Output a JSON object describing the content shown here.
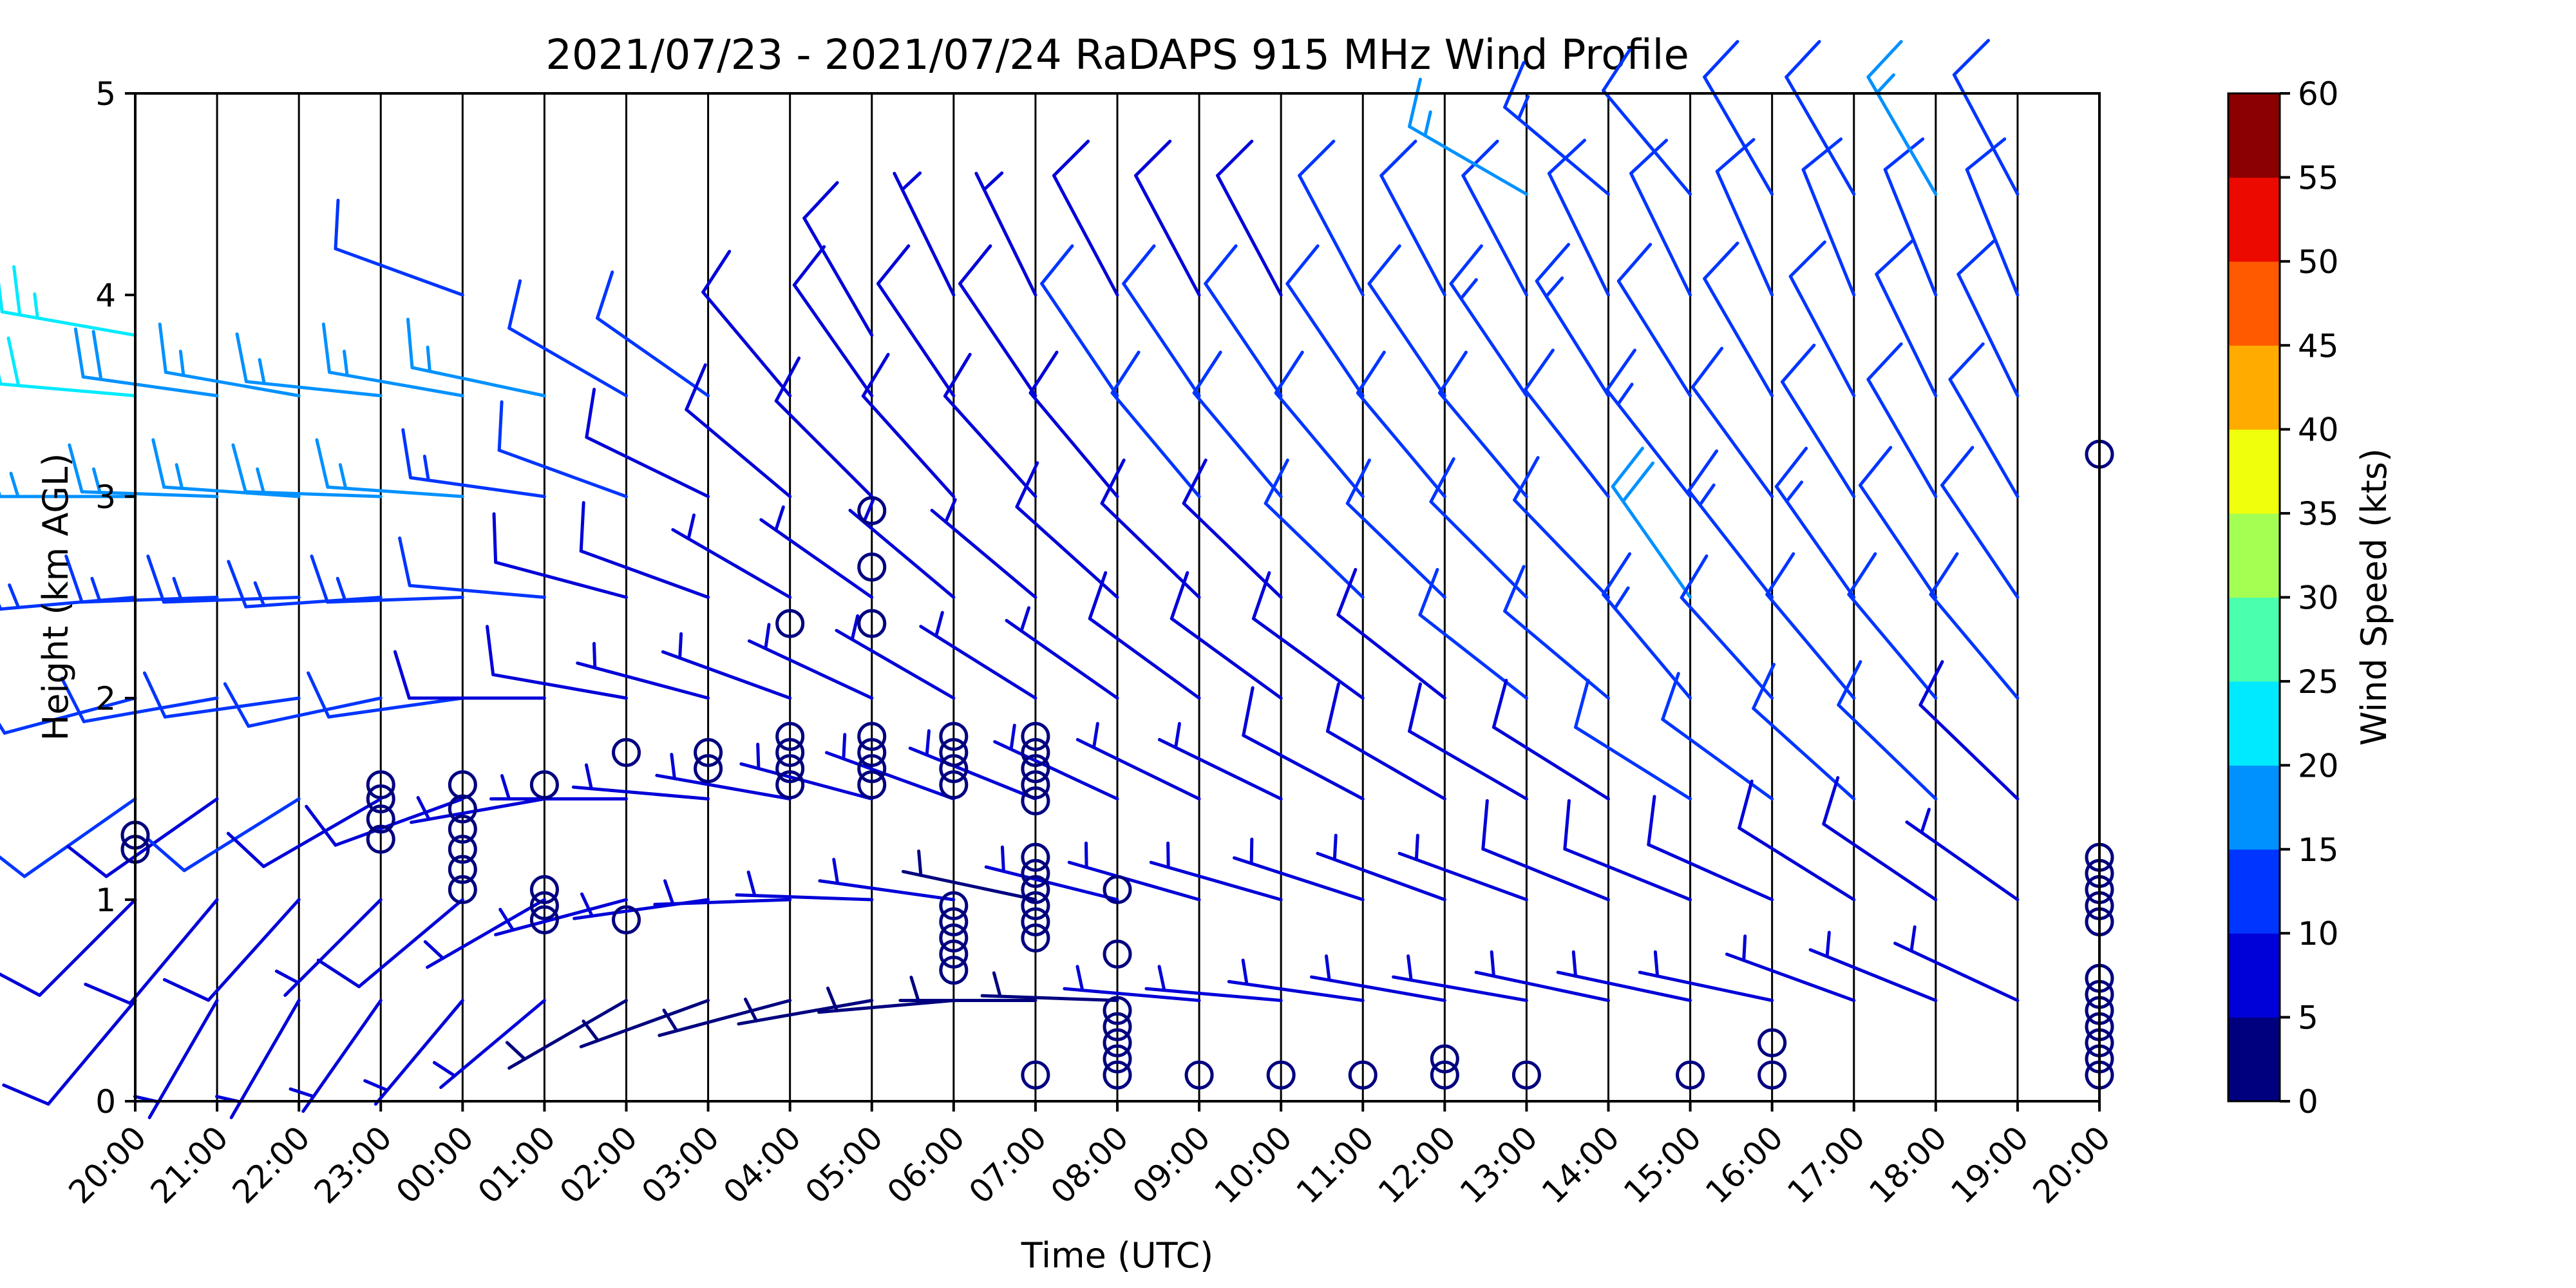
{
  "chart_data": {
    "type": "wind_barb_profile",
    "title": "2021/07/23 - 2021/07/24 RaDAPS 915 MHz Wind Profile",
    "xlabel": "Time (UTC)",
    "ylabel": "Height (km AGL)",
    "ylim": [
      0,
      5
    ],
    "yticks": [
      "0",
      "1",
      "2",
      "3",
      "4",
      "5"
    ],
    "x_ticks": [
      "20:00",
      "21:00",
      "22:00",
      "23:00",
      "00:00",
      "01:00",
      "02:00",
      "03:00",
      "04:00",
      "05:00",
      "06:00",
      "07:00",
      "08:00",
      "09:00",
      "10:00",
      "11:00",
      "12:00",
      "13:00",
      "14:00",
      "15:00",
      "16:00",
      "17:00",
      "18:00",
      "19:00",
      "20:00"
    ],
    "colorbar": {
      "label": "Wind Speed (kts)",
      "ticks": [
        "0",
        "5",
        "10",
        "15",
        "20",
        "25",
        "30",
        "35",
        "40",
        "45",
        "50",
        "55",
        "60"
      ],
      "colors": [
        "#00007f",
        "#0000d8",
        "#0035ff",
        "#0091ff",
        "#00eaff",
        "#4affad",
        "#a4ff53",
        "#f0ff0b",
        "#ffab00",
        "#ff5a00",
        "#ec0a00",
        "#8b0000"
      ]
    },
    "profiles": [
      {
        "time": "20:00",
        "heights": [
          0.5,
          1.0,
          1.5,
          2.0,
          2.5,
          3.0,
          3.5,
          3.8
        ],
        "speeds": [
          8,
          9,
          10,
          12,
          14,
          17,
          20,
          24
        ],
        "directions": [
          220,
          225,
          235,
          255,
          265,
          270,
          275,
          280
        ]
      },
      {
        "time": "21:00",
        "heights": [
          0.5,
          1.0,
          1.5,
          2.0,
          2.5,
          3.0,
          3.5
        ],
        "speeds": [
          7,
          8,
          9,
          11,
          13,
          16,
          18
        ],
        "directions": [
          210,
          220,
          235,
          260,
          268,
          272,
          278
        ]
      },
      {
        "time": "22:00",
        "heights": [
          0.5,
          1.0,
          1.5,
          2.0,
          2.5,
          3.0,
          3.5
        ],
        "speeds": [
          6,
          8,
          10,
          12,
          14,
          17,
          15
        ],
        "directions": [
          210,
          222,
          238,
          262,
          268,
          274,
          280
        ]
      },
      {
        "time": "23:00",
        "heights": [
          0.5,
          1.0,
          1.5,
          2.0,
          2.5,
          3.0,
          3.5
        ],
        "speeds": [
          5,
          7,
          9,
          12,
          14,
          17,
          16
        ],
        "directions": [
          215,
          225,
          240,
          258,
          266,
          272,
          276
        ]
      },
      {
        "time": "00:00",
        "heights": [
          0.5,
          1.0,
          1.5,
          2.0,
          2.5,
          3.0,
          3.5,
          4.0
        ],
        "speeds": [
          6,
          8,
          8,
          11,
          13,
          16,
          15,
          12
        ],
        "directions": [
          220,
          230,
          250,
          262,
          268,
          274,
          280,
          290
        ]
      },
      {
        "time": "01:00",
        "heights": [
          0.5,
          1.0,
          1.5,
          2.0,
          2.5,
          3.0,
          3.5
        ],
        "speeds": [
          5,
          6,
          7,
          9,
          12,
          14,
          17
        ],
        "directions": [
          230,
          240,
          260,
          270,
          275,
          278,
          282
        ]
      },
      {
        "time": "02:00",
        "heights": [
          0.5,
          1.0,
          1.5,
          2.0,
          2.5,
          3.0,
          3.5
        ],
        "speeds": [
          4,
          6,
          7,
          8,
          9,
          10,
          10
        ],
        "directions": [
          240,
          255,
          270,
          280,
          285,
          290,
          300
        ]
      },
      {
        "time": "03:00",
        "heights": [
          0.5,
          1.0,
          1.5,
          2.0,
          2.5,
          3.0,
          3.5
        ],
        "speeds": [
          4,
          5,
          6,
          7,
          8,
          9,
          10
        ],
        "directions": [
          250,
          262,
          275,
          285,
          290,
          296,
          305
        ]
      },
      {
        "time": "04:00",
        "heights": [
          0.5,
          1.0,
          1.5,
          2.0,
          2.5,
          3.0,
          3.5
        ],
        "speeds": [
          4,
          5,
          6,
          6,
          7,
          8,
          9
        ],
        "directions": [
          255,
          268,
          280,
          290,
          300,
          310,
          320
        ]
      },
      {
        "time": "05:00",
        "heights": [
          0.5,
          1.0,
          1.5,
          2.0,
          2.5,
          3.0,
          3.5,
          3.8
        ],
        "speeds": [
          4,
          5,
          5,
          6,
          7,
          8,
          9,
          8
        ],
        "directions": [
          260,
          272,
          285,
          295,
          305,
          315,
          325,
          330
        ]
      },
      {
        "time": "06:00",
        "heights": [
          0.5,
          1.0,
          1.5,
          2.0,
          2.5,
          3.0,
          3.5,
          4.0
        ],
        "speeds": [
          4,
          5,
          5,
          6,
          7,
          8,
          8,
          7
        ],
        "directions": [
          265,
          278,
          290,
          300,
          310,
          318,
          326,
          334
        ]
      },
      {
        "time": "07:00",
        "heights": [
          0.5,
          1.0,
          1.5,
          2.0,
          2.5,
          3.0,
          3.5,
          4.0
        ],
        "speeds": [
          4,
          4,
          5,
          6,
          7,
          8,
          8,
          7
        ],
        "directions": [
          270,
          282,
          292,
          302,
          310,
          318,
          326,
          334
        ]
      },
      {
        "time": "08:00",
        "heights": [
          0.5,
          1.0,
          1.5,
          2.0,
          2.5,
          3.0,
          3.5,
          4.0
        ],
        "speeds": [
          4,
          5,
          6,
          7,
          8,
          9,
          10,
          9
        ],
        "directions": [
          272,
          284,
          295,
          305,
          312,
          320,
          326,
          332
        ]
      },
      {
        "time": "09:00",
        "heights": [
          0.5,
          1.0,
          1.5,
          2.0,
          2.5,
          3.0,
          3.5,
          4.0
        ],
        "speeds": [
          5,
          6,
          7,
          8,
          9,
          10,
          10,
          9
        ],
        "directions": [
          275,
          286,
          296,
          306,
          314,
          320,
          326,
          332
        ]
      },
      {
        "time": "10:00",
        "heights": [
          0.5,
          1.0,
          1.5,
          2.0,
          2.5,
          3.0,
          3.5,
          4.0
        ],
        "speeds": [
          5,
          6,
          7,
          8,
          9,
          10,
          10,
          9
        ],
        "directions": [
          275,
          286,
          296,
          306,
          314,
          320,
          326,
          332
        ]
      },
      {
        "time": "11:00",
        "heights": [
          0.5,
          1.0,
          1.5,
          2.0,
          2.5,
          3.0,
          3.5,
          4.0
        ],
        "speeds": [
          5,
          7,
          8,
          9,
          10,
          11,
          12,
          11
        ],
        "directions": [
          278,
          288,
          298,
          306,
          314,
          320,
          326,
          332
        ]
      },
      {
        "time": "12:00",
        "heights": [
          0.5,
          1.0,
          1.5,
          2.0,
          2.5,
          3.0,
          3.5,
          4.0
        ],
        "speeds": [
          5,
          7,
          8,
          9,
          10,
          11,
          12,
          11
        ],
        "directions": [
          280,
          290,
          300,
          308,
          314,
          320,
          326,
          332
        ]
      },
      {
        "time": "13:00",
        "heights": [
          0.5,
          1.0,
          1.5,
          2.0,
          2.5,
          3.0,
          3.5,
          4.0,
          4.5
        ],
        "speeds": [
          5,
          7,
          9,
          10,
          11,
          12,
          13,
          12,
          15
        ],
        "directions": [
          280,
          290,
          300,
          308,
          315,
          320,
          326,
          332,
          300
        ]
      },
      {
        "time": "14:00",
        "heights": [
          0.5,
          1.0,
          1.5,
          2.0,
          2.5,
          3.0,
          3.5,
          4.0,
          4.5
        ],
        "speeds": [
          6,
          8,
          9,
          10,
          11,
          12,
          13,
          12,
          14
        ],
        "directions": [
          282,
          292,
          302,
          310,
          316,
          322,
          328,
          334,
          310
        ]
      },
      {
        "time": "15:00",
        "heights": [
          0.5,
          1.0,
          1.5,
          2.0,
          2.5,
          3.0,
          3.5,
          4.0,
          4.5
        ],
        "speeds": [
          6,
          8,
          10,
          13,
          18,
          13,
          12,
          11,
          10
        ],
        "directions": [
          282,
          292,
          302,
          320,
          325,
          322,
          328,
          334,
          320
        ]
      },
      {
        "time": "16:00",
        "heights": [
          0.5,
          1.0,
          1.5,
          2.0,
          2.5,
          3.0,
          3.5,
          4.0,
          4.5
        ],
        "speeds": [
          6,
          8,
          10,
          12,
          13,
          12,
          11,
          10,
          10
        ],
        "directions": [
          282,
          294,
          306,
          318,
          322,
          324,
          330,
          336,
          330
        ]
      },
      {
        "time": "17:00",
        "heights": [
          0.5,
          1.0,
          1.5,
          2.0,
          2.5,
          3.0,
          3.5,
          4.0,
          4.5
        ],
        "speeds": [
          6,
          8,
          10,
          12,
          13,
          12,
          11,
          10,
          10
        ],
        "directions": [
          290,
          302,
          312,
          320,
          325,
          328,
          332,
          338,
          330
        ]
      },
      {
        "time": "18:00",
        "heights": [
          0.5,
          1.0,
          1.5,
          2.0,
          2.5,
          3.0,
          3.5,
          4.0,
          4.5
        ],
        "speeds": [
          6,
          8,
          10,
          11,
          12,
          12,
          12,
          11,
          17
        ],
        "directions": [
          292,
          304,
          314,
          320,
          326,
          330,
          334,
          338,
          330
        ]
      },
      {
        "time": "19:00",
        "heights": [
          0.5,
          1.0,
          1.5,
          2.0,
          2.5,
          3.0,
          3.5,
          4.0,
          4.5
        ],
        "speeds": [
          5,
          7,
          9,
          10,
          11,
          11,
          10,
          10,
          11
        ],
        "directions": [
          295,
          305,
          314,
          320,
          326,
          330,
          334,
          338,
          332
        ]
      }
    ],
    "calm_markers": [
      {
        "time": "20:00",
        "heights": [
          1.25,
          1.32
        ]
      },
      {
        "time": "23:00",
        "heights": [
          1.3,
          1.4,
          1.5,
          1.57
        ]
      },
      {
        "time": "00:00",
        "heights": [
          1.05,
          1.15,
          1.25,
          1.35,
          1.45,
          1.57
        ]
      },
      {
        "time": "01:00",
        "heights": [
          0.9,
          0.97,
          1.05,
          1.57
        ]
      },
      {
        "time": "02:00",
        "heights": [
          0.9,
          1.73
        ]
      },
      {
        "time": "03:00",
        "heights": [
          1.65,
          1.73
        ]
      },
      {
        "time": "04:00",
        "heights": [
          1.57,
          1.65,
          1.73,
          1.81,
          2.37
        ]
      },
      {
        "time": "05:00",
        "heights": [
          1.57,
          1.65,
          1.73,
          1.81,
          2.37,
          2.65,
          2.93
        ]
      },
      {
        "time": "06:00",
        "heights": [
          0.65,
          0.73,
          0.81,
          0.89,
          0.97,
          1.57,
          1.65,
          1.73,
          1.81
        ]
      },
      {
        "time": "07:00",
        "heights": [
          0.13,
          0.81,
          0.89,
          0.97,
          1.05,
          1.13,
          1.21,
          1.49,
          1.57,
          1.65,
          1.73,
          1.81
        ]
      },
      {
        "time": "08:00",
        "heights": [
          0.13,
          0.21,
          0.29,
          0.37,
          0.45,
          0.73,
          1.05
        ]
      },
      {
        "time": "09:00",
        "heights": [
          0.13
        ]
      },
      {
        "time": "10:00",
        "heights": [
          0.13
        ]
      },
      {
        "time": "11:00",
        "heights": [
          0.13
        ]
      },
      {
        "time": "12:00",
        "heights": [
          0.13,
          0.21
        ]
      },
      {
        "time": "13:00",
        "heights": [
          0.13
        ]
      },
      {
        "time": "15:00",
        "heights": [
          0.13
        ]
      },
      {
        "time": "16:00",
        "heights": [
          0.13,
          0.29
        ]
      },
      {
        "time": "20:00b",
        "heights": [
          0.13,
          0.21,
          0.29,
          0.37,
          0.45,
          0.53,
          0.61,
          0.89,
          0.97,
          1.05,
          1.13,
          1.21,
          3.21
        ]
      }
    ]
  }
}
